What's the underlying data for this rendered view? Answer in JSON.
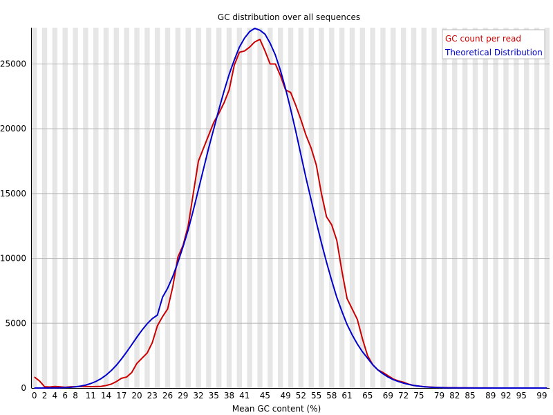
{
  "chart_data": {
    "type": "line",
    "title": "GC distribution over all sequences",
    "xlabel": "Mean GC content (%)",
    "ylabel": "",
    "xlim": [
      0,
      101
    ],
    "ylim": [
      0,
      27800
    ],
    "yticks": [
      0,
      5000,
      10000,
      15000,
      20000,
      25000
    ],
    "xticks": [
      0,
      2,
      4,
      6,
      8,
      11,
      14,
      17,
      20,
      23,
      26,
      29,
      32,
      35,
      38,
      41,
      45,
      49,
      52,
      55,
      58,
      61,
      65,
      69,
      72,
      75,
      79,
      82,
      85,
      89,
      92,
      95,
      99
    ],
    "grid": "horizontal lines, alternating vertical bands",
    "legend_position": "top-right",
    "series": [
      {
        "name": "GC count per read",
        "color": "#cc0000",
        "points": [
          [
            0,
            850
          ],
          [
            1,
            550
          ],
          [
            2,
            100
          ],
          [
            3,
            80
          ],
          [
            4,
            120
          ],
          [
            5,
            90
          ],
          [
            6,
            60
          ],
          [
            7,
            90
          ],
          [
            8,
            100
          ],
          [
            9,
            110
          ],
          [
            10,
            130
          ],
          [
            11,
            100
          ],
          [
            12,
            110
          ],
          [
            13,
            130
          ],
          [
            14,
            200
          ],
          [
            15,
            300
          ],
          [
            16,
            500
          ],
          [
            17,
            750
          ],
          [
            18,
            850
          ],
          [
            19,
            1200
          ],
          [
            20,
            1900
          ],
          [
            21,
            2300
          ],
          [
            22,
            2700
          ],
          [
            23,
            3500
          ],
          [
            24,
            4800
          ],
          [
            25,
            5500
          ],
          [
            26,
            6100
          ],
          [
            27,
            7800
          ],
          [
            28,
            10100
          ],
          [
            29,
            11000
          ],
          [
            30,
            12500
          ],
          [
            31,
            15000
          ],
          [
            32,
            17500
          ],
          [
            33,
            18500
          ],
          [
            34,
            19500
          ],
          [
            35,
            20500
          ],
          [
            36,
            21200
          ],
          [
            37,
            22000
          ],
          [
            38,
            23000
          ],
          [
            39,
            24900
          ],
          [
            40,
            25900
          ],
          [
            41,
            26000
          ],
          [
            42,
            26300
          ],
          [
            43,
            26700
          ],
          [
            44,
            26900
          ],
          [
            45,
            26000
          ],
          [
            46,
            25000
          ],
          [
            47,
            25000
          ],
          [
            48,
            24100
          ],
          [
            49,
            23000
          ],
          [
            50,
            22800
          ],
          [
            51,
            21800
          ],
          [
            52,
            20700
          ],
          [
            53,
            19500
          ],
          [
            54,
            18500
          ],
          [
            55,
            17200
          ],
          [
            56,
            15000
          ],
          [
            57,
            13200
          ],
          [
            58,
            12600
          ],
          [
            59,
            11400
          ],
          [
            60,
            9000
          ],
          [
            61,
            6900
          ],
          [
            62,
            6100
          ],
          [
            63,
            5300
          ],
          [
            64,
            3800
          ],
          [
            65,
            2500
          ],
          [
            66,
            1800
          ],
          [
            67,
            1400
          ],
          [
            68,
            1200
          ],
          [
            69,
            950
          ],
          [
            70,
            700
          ],
          [
            71,
            550
          ],
          [
            72,
            450
          ],
          [
            73,
            300
          ],
          [
            74,
            200
          ],
          [
            75,
            150
          ],
          [
            76,
            100
          ],
          [
            77,
            80
          ],
          [
            78,
            60
          ],
          [
            79,
            40
          ],
          [
            80,
            30
          ],
          [
            81,
            25
          ],
          [
            82,
            20
          ],
          [
            83,
            15
          ],
          [
            84,
            10
          ],
          [
            85,
            8
          ],
          [
            86,
            6
          ],
          [
            87,
            5
          ],
          [
            88,
            4
          ],
          [
            89,
            3
          ],
          [
            90,
            2
          ],
          [
            91,
            2
          ],
          [
            92,
            1
          ],
          [
            93,
            1
          ],
          [
            94,
            1
          ],
          [
            95,
            0
          ],
          [
            96,
            0
          ],
          [
            97,
            0
          ],
          [
            98,
            0
          ],
          [
            99,
            0
          ],
          [
            100,
            0
          ]
        ]
      },
      {
        "name": "Theoretical Distribution",
        "color": "#0000cc",
        "points": [
          [
            0,
            0
          ],
          [
            1,
            1
          ],
          [
            2,
            2
          ],
          [
            3,
            5
          ],
          [
            4,
            10
          ],
          [
            5,
            18
          ],
          [
            6,
            32
          ],
          [
            7,
            55
          ],
          [
            8,
            92
          ],
          [
            9,
            147
          ],
          [
            10,
            229
          ],
          [
            11,
            346
          ],
          [
            12,
            507
          ],
          [
            13,
            722
          ],
          [
            14,
            1000
          ],
          [
            15,
            1347
          ],
          [
            16,
            1763
          ],
          [
            17,
            2244
          ],
          [
            18,
            2778
          ],
          [
            19,
            3346
          ],
          [
            20,
            3920
          ],
          [
            21,
            4468
          ],
          [
            22,
            4956
          ],
          [
            23,
            5350
          ],
          [
            24,
            5632
          ],
          [
            25,
            7000
          ],
          [
            26,
            7700
          ],
          [
            27,
            8600
          ],
          [
            28,
            9700
          ],
          [
            29,
            10900
          ],
          [
            30,
            12200
          ],
          [
            31,
            13700
          ],
          [
            32,
            15300
          ],
          [
            33,
            16900
          ],
          [
            34,
            18500
          ],
          [
            35,
            20000
          ],
          [
            36,
            21500
          ],
          [
            37,
            22900
          ],
          [
            38,
            24200
          ],
          [
            39,
            25300
          ],
          [
            40,
            26300
          ],
          [
            41,
            27000
          ],
          [
            42,
            27500
          ],
          [
            43,
            27750
          ],
          [
            44,
            27600
          ],
          [
            45,
            27300
          ],
          [
            46,
            26600
          ],
          [
            47,
            25700
          ],
          [
            48,
            24500
          ],
          [
            49,
            23100
          ],
          [
            50,
            21500
          ],
          [
            51,
            19800
          ],
          [
            52,
            18000
          ],
          [
            53,
            16200
          ],
          [
            54,
            14500
          ],
          [
            55,
            12800
          ],
          [
            56,
            11200
          ],
          [
            57,
            9700
          ],
          [
            58,
            8300
          ],
          [
            59,
            7000
          ],
          [
            60,
            5900
          ],
          [
            61,
            4900
          ],
          [
            62,
            4100
          ],
          [
            63,
            3400
          ],
          [
            64,
            2800
          ],
          [
            65,
            2300
          ],
          [
            66,
            1800
          ],
          [
            67,
            1400
          ],
          [
            68,
            1100
          ],
          [
            69,
            850
          ],
          [
            70,
            650
          ],
          [
            71,
            500
          ],
          [
            72,
            380
          ],
          [
            73,
            280
          ],
          [
            74,
            200
          ],
          [
            75,
            150
          ],
          [
            76,
            100
          ],
          [
            77,
            70
          ],
          [
            78,
            50
          ],
          [
            79,
            35
          ],
          [
            80,
            24
          ],
          [
            81,
            16
          ],
          [
            82,
            10
          ],
          [
            83,
            7
          ],
          [
            84,
            4
          ],
          [
            85,
            3
          ],
          [
            86,
            2
          ],
          [
            87,
            1
          ],
          [
            88,
            1
          ],
          [
            89,
            0
          ],
          [
            90,
            0
          ],
          [
            91,
            0
          ],
          [
            92,
            0
          ],
          [
            93,
            0
          ],
          [
            94,
            0
          ],
          [
            95,
            0
          ],
          [
            96,
            0
          ],
          [
            97,
            0
          ],
          [
            98,
            0
          ],
          [
            99,
            0
          ],
          [
            100,
            0
          ]
        ]
      }
    ]
  }
}
